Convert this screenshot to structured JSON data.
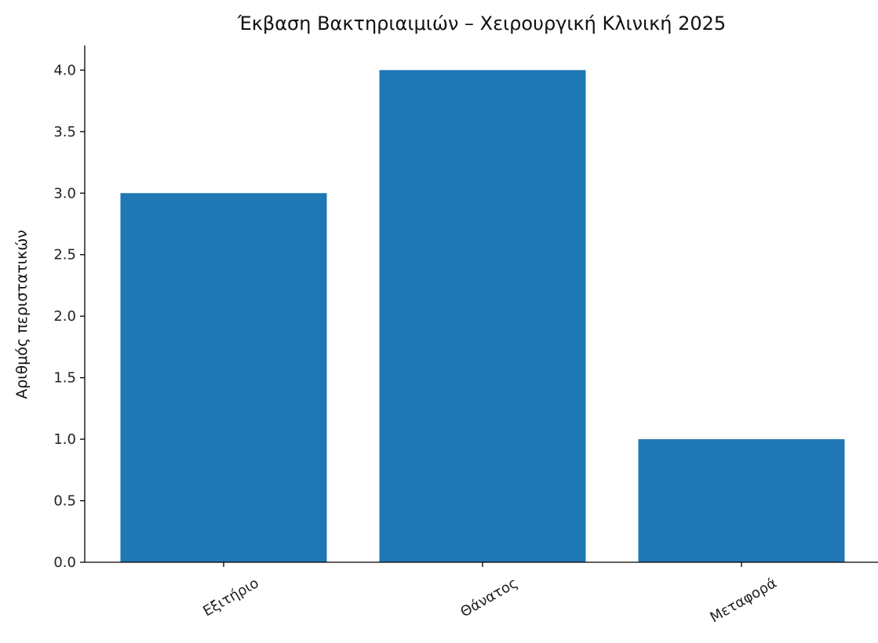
{
  "chart_data": {
    "type": "bar",
    "title": "Έκβαση Βακτηριαιμιών – Χειρουργική Κλινική 2025",
    "xlabel": "",
    "ylabel": "Αριθμός περιστατικών",
    "categories": [
      "Εξιτήριο",
      "Θάνατος",
      "Μεταφορά"
    ],
    "values": [
      3,
      4,
      1
    ],
    "ylim": [
      0,
      4.2
    ],
    "yticks": [
      "0.0",
      "0.5",
      "1.0",
      "1.5",
      "2.0",
      "2.5",
      "3.0",
      "3.5",
      "4.0"
    ],
    "ytick_values": [
      0,
      0.5,
      1,
      1.5,
      2,
      2.5,
      3,
      3.5,
      4
    ],
    "grid": false,
    "bar_color": "#1f77b4",
    "axis_color": "#000000"
  }
}
